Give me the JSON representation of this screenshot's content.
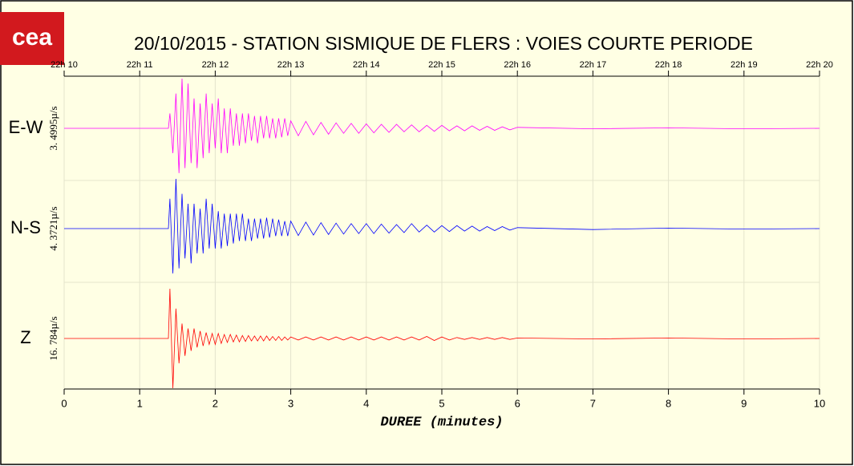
{
  "logo_text": "cea",
  "chart_data": {
    "type": "line",
    "title": "20/10/2015  -  STATION SISMIQUE DE FLERS : VOIES COURTE PERIODE",
    "xlabel": "DUREE (minutes)",
    "xlim": [
      0,
      10
    ],
    "xticks": [
      0,
      1,
      2,
      3,
      4,
      5,
      6,
      7,
      8,
      9,
      10
    ],
    "x2ticks": [
      {
        "value": 0,
        "label": "22h 10"
      },
      {
        "value": 1,
        "label": "22h 11"
      },
      {
        "value": 2,
        "label": "22h 12"
      },
      {
        "value": 3,
        "label": "22h 13"
      },
      {
        "value": 4,
        "label": "22h 14"
      },
      {
        "value": 5,
        "label": "22h 15"
      },
      {
        "value": 6,
        "label": "22h 16"
      },
      {
        "value": 7,
        "label": "22h 17"
      },
      {
        "value": 8,
        "label": "22h 18"
      },
      {
        "value": 9,
        "label": "22h 19"
      },
      {
        "value": 10,
        "label": "22h 20"
      }
    ],
    "ylim": [
      -1,
      1
    ],
    "grid": true,
    "x": [
      0,
      1,
      1.38,
      1.4,
      1.44,
      1.48,
      1.52,
      1.56,
      1.6,
      1.64,
      1.68,
      1.72,
      1.76,
      1.8,
      1.84,
      1.88,
      1.92,
      1.96,
      2,
      2.04,
      2.08,
      2.12,
      2.16,
      2.2,
      2.24,
      2.28,
      2.32,
      2.36,
      2.4,
      2.44,
      2.48,
      2.52,
      2.56,
      2.6,
      2.64,
      2.68,
      2.72,
      2.76,
      2.8,
      2.84,
      2.88,
      2.92,
      2.96,
      3,
      3.1,
      3.2,
      3.3,
      3.4,
      3.5,
      3.6,
      3.7,
      3.8,
      3.9,
      4,
      4.1,
      4.2,
      4.3,
      4.4,
      4.5,
      4.6,
      4.7,
      4.8,
      4.9,
      5,
      5.1,
      5.2,
      5.3,
      5.4,
      5.5,
      5.6,
      5.7,
      5.8,
      5.9,
      6,
      7,
      8,
      9,
      10
    ],
    "series": [
      {
        "name": "E-W",
        "scale_label": "3. 4995µ/s",
        "color": "#ff00ff",
        "values": [
          0,
          0,
          0,
          0.3,
          -0.5,
          0.7,
          -0.9,
          1,
          -0.8,
          0.9,
          -0.7,
          0.6,
          -0.8,
          0.5,
          -0.6,
          0.7,
          -0.5,
          0.5,
          -0.4,
          0.6,
          -0.5,
          0.4,
          -0.5,
          0.4,
          -0.35,
          0.3,
          -0.35,
          0.3,
          -0.3,
          0.3,
          -0.25,
          0.25,
          -0.3,
          0.25,
          -0.2,
          0.25,
          -0.2,
          0.2,
          -0.2,
          0.2,
          -0.18,
          0.2,
          -0.15,
          0.15,
          -0.15,
          0.14,
          -0.13,
          0.12,
          -0.12,
          0.11,
          -0.1,
          0.1,
          -0.1,
          0.09,
          -0.09,
          0.08,
          -0.08,
          0.08,
          -0.07,
          0.07,
          -0.07,
          0.06,
          -0.06,
          0.06,
          -0.05,
          0.05,
          -0.05,
          0.05,
          -0.04,
          0.04,
          -0.04,
          0.03,
          -0.03,
          0.02,
          -0.01,
          0.01,
          -0.01,
          0
        ]
      },
      {
        "name": "N-S",
        "scale_label": "4. 3721µ/s",
        "color": "#0000ff",
        "values": [
          0,
          0,
          0,
          0.6,
          -0.9,
          1,
          -0.8,
          0.7,
          -0.6,
          0.5,
          -0.7,
          0.5,
          -0.5,
          0.4,
          -0.5,
          0.6,
          -0.4,
          0.5,
          -0.4,
          0.35,
          -0.4,
          0.3,
          -0.35,
          0.3,
          -0.3,
          0.3,
          -0.25,
          0.3,
          -0.25,
          0.2,
          -0.25,
          0.2,
          -0.2,
          0.2,
          -0.2,
          0.22,
          -0.18,
          0.2,
          -0.15,
          0.18,
          -0.15,
          0.15,
          -0.15,
          0.15,
          -0.14,
          0.13,
          -0.13,
          0.12,
          -0.12,
          0.11,
          -0.11,
          0.1,
          -0.1,
          0.1,
          -0.1,
          0.09,
          -0.09,
          0.08,
          -0.08,
          0.1,
          -0.07,
          0.07,
          -0.07,
          0.06,
          -0.06,
          0.06,
          -0.05,
          0.05,
          -0.05,
          0.04,
          -0.04,
          0.04,
          -0.03,
          0.02,
          -0.02,
          0.01,
          -0.01,
          0
        ]
      },
      {
        "name": "Z",
        "scale_label": "16. 784µ/s",
        "color": "#ff0000",
        "values": [
          0,
          0,
          0,
          1,
          -1,
          0.6,
          -0.5,
          0.3,
          -0.35,
          0.2,
          -0.25,
          0.2,
          -0.18,
          0.15,
          -0.15,
          0.12,
          -0.12,
          0.1,
          -0.12,
          0.1,
          -0.1,
          0.08,
          -0.08,
          0.08,
          -0.07,
          0.07,
          -0.07,
          0.06,
          -0.06,
          0.06,
          -0.05,
          0.05,
          -0.05,
          0.05,
          -0.05,
          0.05,
          -0.04,
          0.04,
          -0.04,
          0.04,
          -0.04,
          0.03,
          -0.03,
          0.03,
          -0.03,
          0.03,
          -0.03,
          0.03,
          -0.03,
          0.03,
          -0.03,
          0.03,
          -0.03,
          0.03,
          -0.03,
          0.03,
          -0.03,
          0.03,
          -0.03,
          0.03,
          -0.03,
          0.04,
          -0.04,
          0.03,
          -0.03,
          0.02,
          -0.02,
          0.02,
          -0.02,
          0.02,
          -0.02,
          0.02,
          -0.02,
          0.01,
          -0.01,
          0.01,
          -0.01,
          0
        ]
      }
    ]
  }
}
